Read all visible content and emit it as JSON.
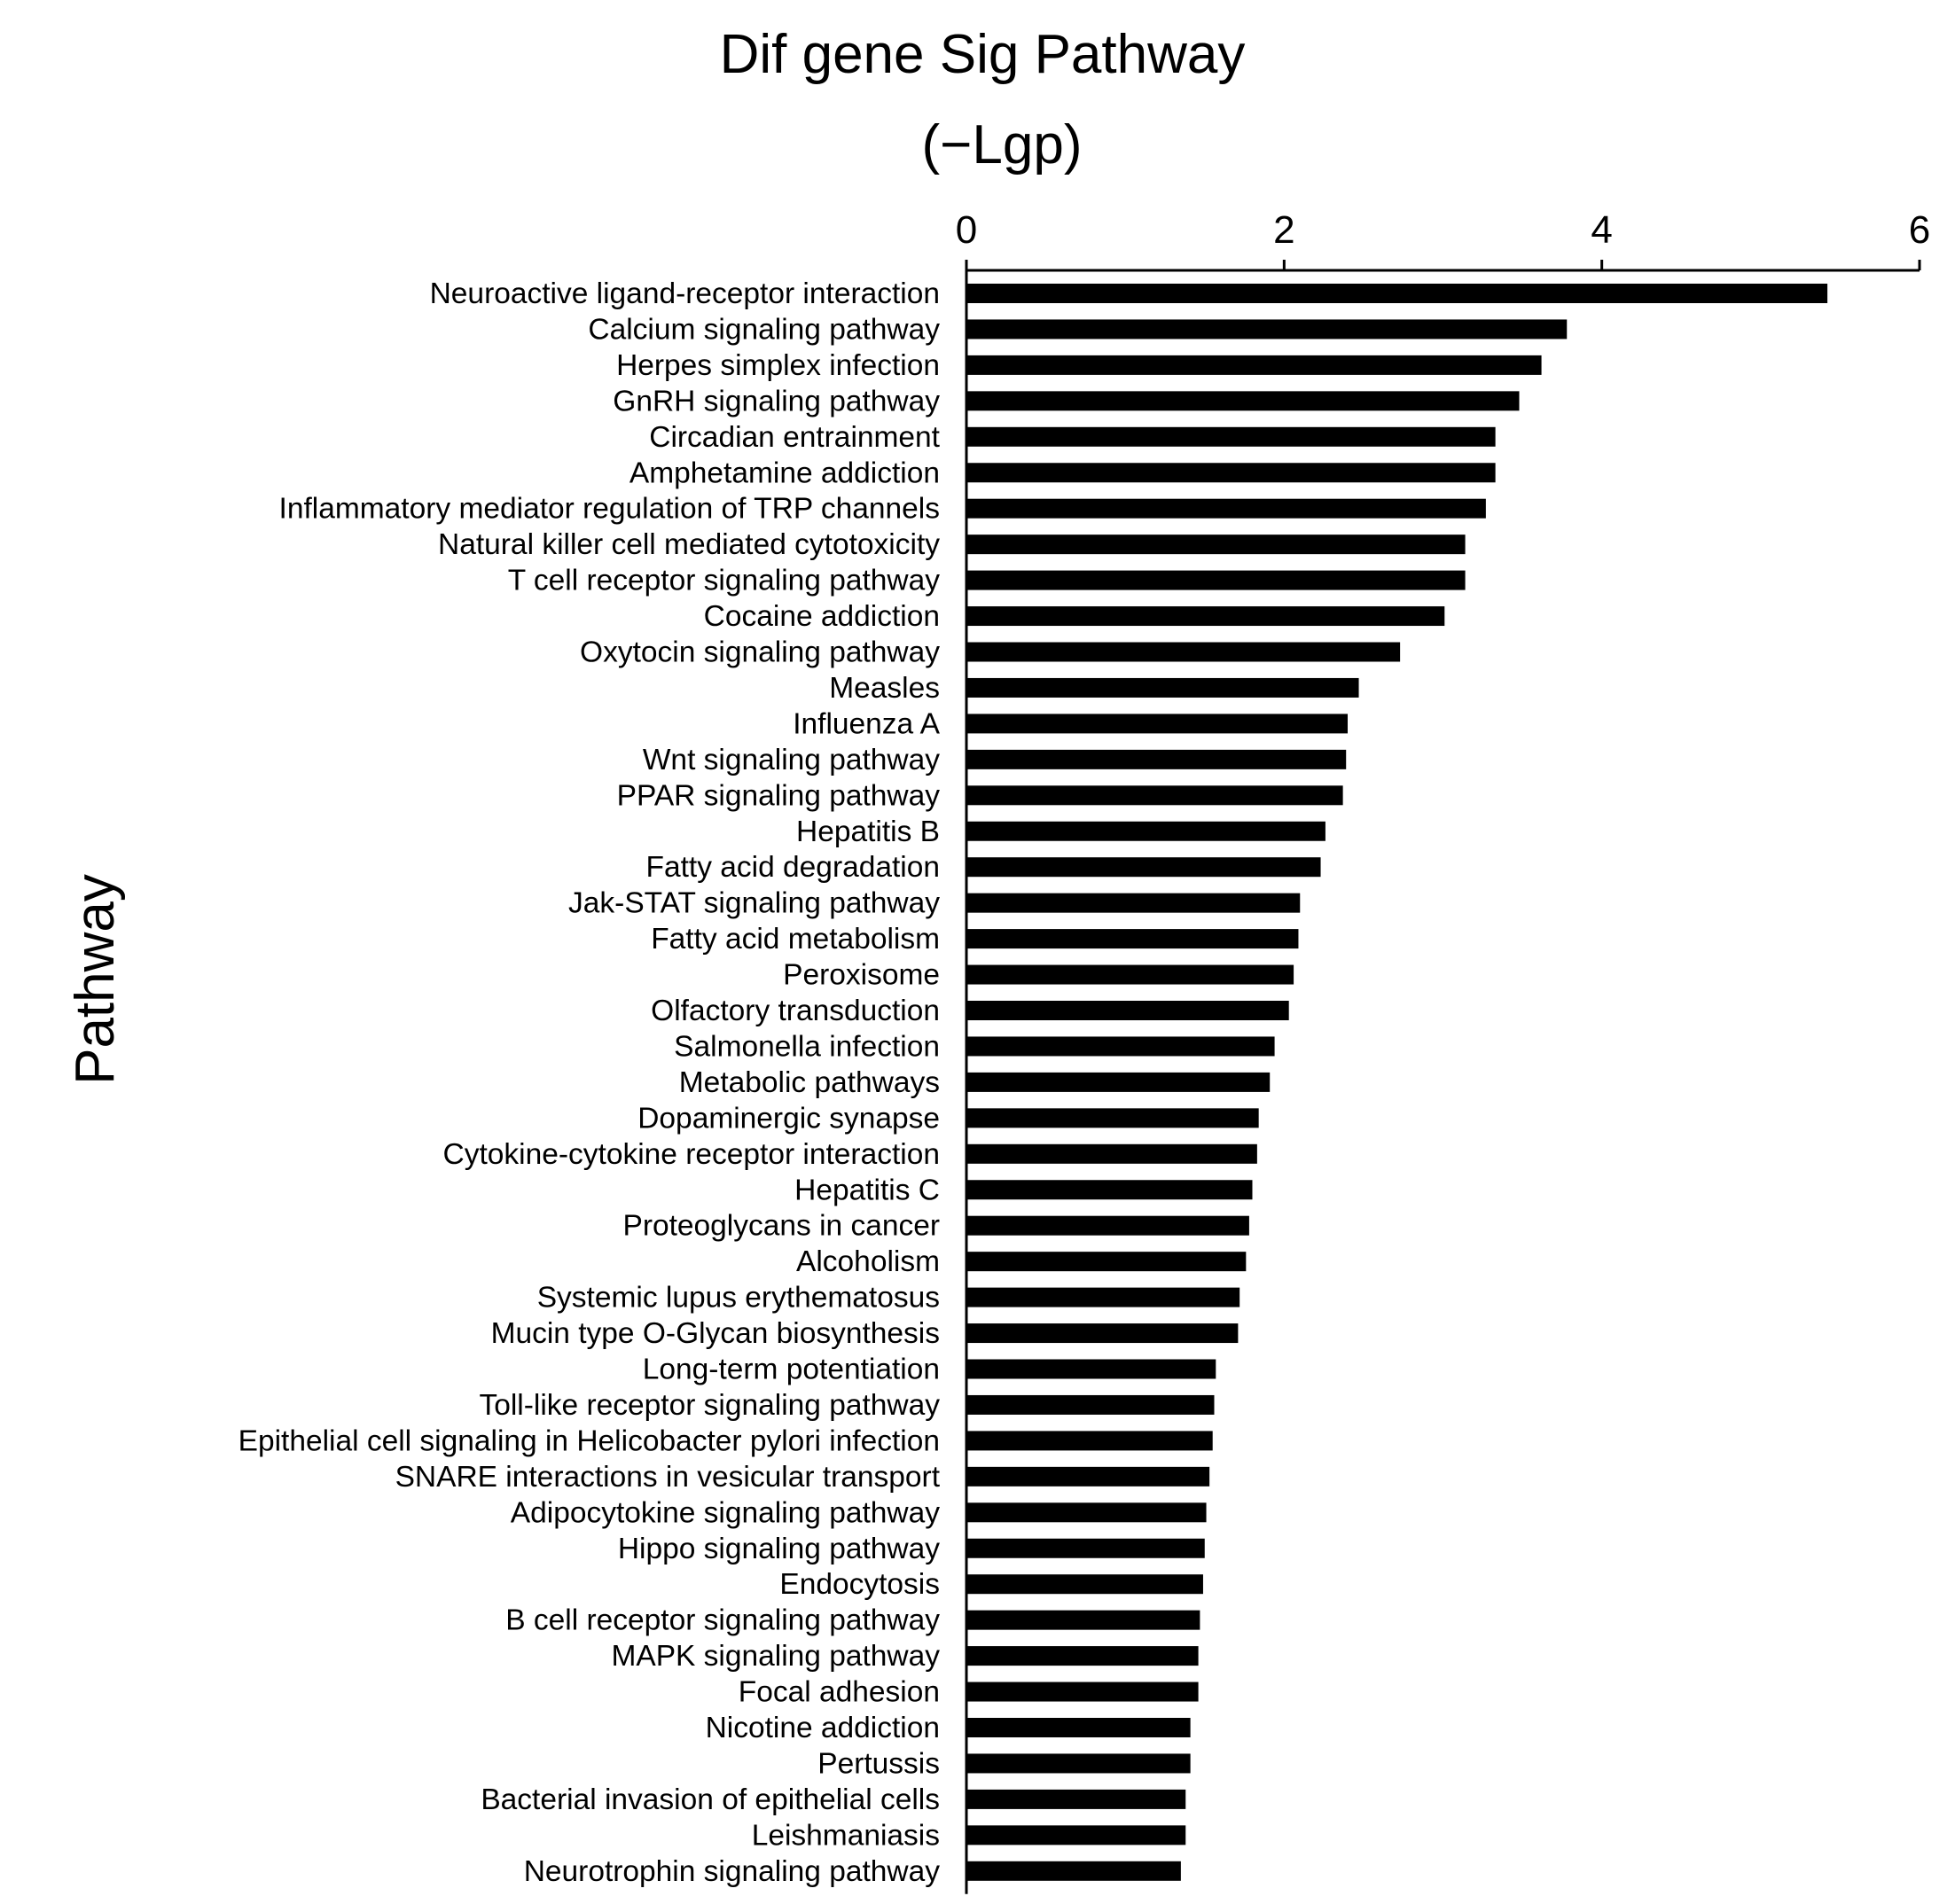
{
  "chart_data": {
    "type": "bar",
    "orientation": "horizontal",
    "title": [
      "Dif gene Sig Pathway",
      "(−Lgp)"
    ],
    "xlabel": "",
    "ylabel": "Pathway",
    "xlim": [
      0,
      6
    ],
    "x_ticks": [
      "0",
      "2",
      "4",
      "6"
    ],
    "x_axis_position": "top",
    "grid": false,
    "bar_color": "#000000",
    "categories": [
      "Neuroactive ligand-receptor interaction",
      "Calcium signaling pathway",
      "Herpes simplex infection",
      "GnRH signaling pathway",
      "Circadian entrainment",
      "Amphetamine addiction",
      "Inflammatory mediator regulation of TRP channels",
      "Natural killer cell mediated cytotoxicity",
      "T cell receptor signaling pathway",
      "Cocaine addiction",
      "Oxytocin signaling pathway",
      "Measles",
      "Influenza A",
      "Wnt signaling pathway",
      "PPAR signaling pathway",
      "Hepatitis B",
      "Fatty acid degradation",
      "Jak-STAT signaling pathway",
      "Fatty acid metabolism",
      "Peroxisome",
      "Olfactory transduction",
      "Salmonella infection",
      "Metabolic pathways",
      "Dopaminergic synapse",
      "Cytokine-cytokine receptor interaction",
      "Hepatitis C",
      "Proteoglycans in cancer",
      "Alcoholism",
      "Systemic lupus erythematosus",
      "Mucin type O-Glycan biosynthesis",
      "Long-term potentiation",
      "Toll-like receptor signaling pathway",
      "Epithelial cell signaling in Helicobacter pylori infection",
      "SNARE interactions in vesicular transport",
      "Adipocytokine signaling pathway",
      "Hippo signaling pathway",
      "Endocytosis",
      "B cell receptor signaling pathway",
      "MAPK signaling pathway",
      "Focal adhesion",
      "Nicotine addiction",
      "Pertussis",
      "Bacterial invasion of epithelial cells",
      "Leishmaniasis",
      "Neurotrophin signaling pathway"
    ],
    "values": [
      5.42,
      3.78,
      3.62,
      3.48,
      3.33,
      3.33,
      3.27,
      3.14,
      3.14,
      3.01,
      2.73,
      2.47,
      2.4,
      2.39,
      2.37,
      2.26,
      2.23,
      2.1,
      2.09,
      2.06,
      2.03,
      1.94,
      1.91,
      1.84,
      1.83,
      1.8,
      1.78,
      1.76,
      1.72,
      1.71,
      1.57,
      1.56,
      1.55,
      1.53,
      1.51,
      1.5,
      1.49,
      1.47,
      1.46,
      1.46,
      1.41,
      1.41,
      1.38,
      1.38,
      1.35
    ]
  }
}
